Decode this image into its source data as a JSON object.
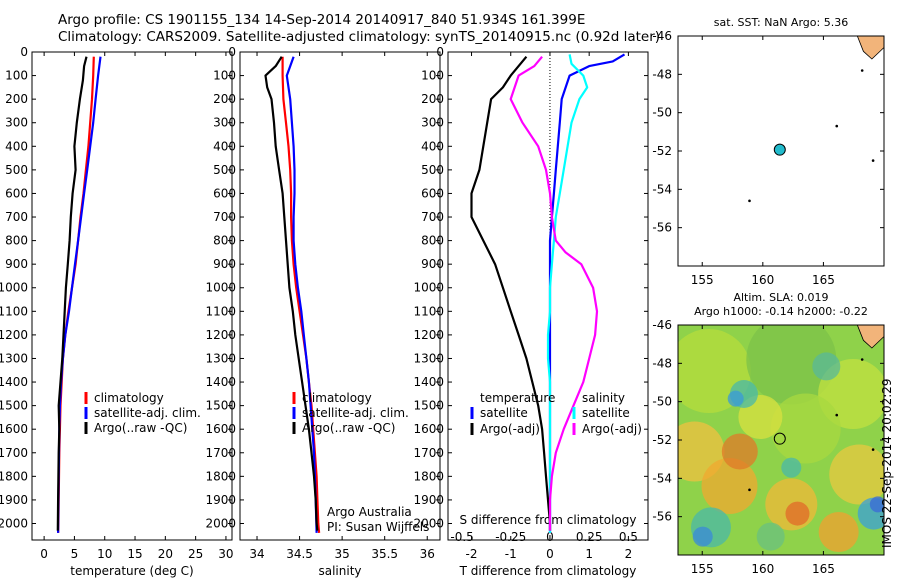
{
  "header": {
    "line1": "Argo profile: CS 1901155_134 14-Sep-2014 20140917_840 51.934S 161.399E",
    "line2": "Climatology: CARS2009. Satellite-adjusted climatology: synTS_20140915.nc (0.92d later)"
  },
  "footer_stamp": "IMOS 22-Sep-2014 20:02:29",
  "colors": {
    "climatology": "#ff0000",
    "satellite": "#0000ff",
    "argo": "#000000",
    "sat_diff_T": "#00ffff",
    "sat_diff_S": "#ff00ff",
    "sst_map_bg": "#ffffff",
    "land": "#f2b47a"
  },
  "chart_data": [
    {
      "type": "line",
      "id": "temperature",
      "xlabel": "temperature (deg C)",
      "ylabel": "",
      "xlim": [
        -2,
        31
      ],
      "ylim": [
        2070,
        0
      ],
      "xticks": [
        0,
        5,
        10,
        15,
        20,
        25,
        30
      ],
      "yticks": [
        0,
        100,
        200,
        300,
        400,
        500,
        600,
        700,
        800,
        900,
        1000,
        1100,
        1200,
        1300,
        1400,
        1500,
        1600,
        1700,
        1800,
        1900,
        2000
      ],
      "legend": [
        "climatology",
        "satellite-adj. clim.",
        "Argo(..raw -QC)"
      ],
      "series": [
        {
          "name": "climatology",
          "color": "#ff0000",
          "x": [
            8.2,
            8.1,
            7.9,
            7.6,
            7.3,
            6.9,
            6.5,
            6.0,
            5.6,
            5.2,
            4.6,
            4.0,
            3.5,
            3.1,
            2.9,
            2.7,
            2.6,
            2.5,
            2.45,
            2.4,
            2.35,
            2.3
          ],
          "y": [
            20,
            100,
            200,
            300,
            400,
            500,
            600,
            700,
            800,
            900,
            1000,
            1100,
            1200,
            1300,
            1400,
            1500,
            1600,
            1700,
            1800,
            1900,
            2000,
            2040
          ]
        },
        {
          "name": "satellite-adj. clim.",
          "color": "#0000ff",
          "x": [
            9.3,
            8.9,
            8.5,
            8.1,
            7.6,
            7.1,
            6.6,
            6.1,
            5.6,
            5.1,
            4.6,
            4.1,
            3.5,
            3.1,
            2.8,
            2.6,
            2.5,
            2.45,
            2.4,
            2.35,
            2.3
          ],
          "y": [
            20,
            100,
            200,
            300,
            400,
            500,
            600,
            700,
            800,
            900,
            1000,
            1100,
            1200,
            1300,
            1400,
            1500,
            1600,
            1700,
            1800,
            1900,
            2040
          ]
        },
        {
          "name": "Argo(..raw -QC)",
          "color": "#000000",
          "x": [
            7.0,
            6.6,
            6.4,
            5.9,
            5.4,
            5.0,
            5.2,
            4.7,
            4.4,
            4.2,
            3.9,
            3.6,
            3.4,
            3.2,
            3.0,
            2.7,
            2.4,
            2.5,
            2.4,
            2.35,
            2.3,
            2.25
          ],
          "y": [
            20,
            60,
            120,
            200,
            300,
            400,
            500,
            600,
            700,
            800,
            900,
            1000,
            1100,
            1200,
            1300,
            1400,
            1500,
            1600,
            1700,
            1800,
            1900,
            2030
          ]
        }
      ]
    },
    {
      "type": "line",
      "id": "salinity",
      "xlabel": "salinity",
      "xlim": [
        33.8,
        36.15
      ],
      "ylim": [
        2070,
        0
      ],
      "xticks": [
        34,
        34.5,
        35,
        35.5,
        36
      ],
      "yticks": [
        0,
        100,
        200,
        300,
        400,
        500,
        600,
        700,
        800,
        900,
        1000,
        1100,
        1200,
        1300,
        1400,
        1500,
        1600,
        1700,
        1800,
        1900,
        2000
      ],
      "legend": [
        "climatology",
        "satellite-adj. clim.",
        "Argo(..raw -QC)"
      ],
      "annotation": [
        "Argo Australia",
        "PI: Susan Wijffels"
      ],
      "series": [
        {
          "name": "climatology",
          "color": "#ff0000",
          "x": [
            34.3,
            34.3,
            34.31,
            34.34,
            34.37,
            34.39,
            34.4,
            34.4,
            34.41,
            34.43,
            34.46,
            34.5,
            34.54,
            34.58,
            34.61,
            34.64,
            34.66,
            34.68,
            34.7,
            34.71,
            34.72,
            34.73
          ],
          "y": [
            20,
            100,
            200,
            300,
            400,
            500,
            600,
            700,
            800,
            900,
            1000,
            1100,
            1200,
            1300,
            1400,
            1500,
            1600,
            1700,
            1800,
            1900,
            2000,
            2040
          ]
        },
        {
          "name": "satellite-adj. clim.",
          "color": "#0000ff",
          "x": [
            34.43,
            34.35,
            34.39,
            34.41,
            34.43,
            34.44,
            34.44,
            34.43,
            34.43,
            34.45,
            34.48,
            34.52,
            34.55,
            34.58,
            34.61,
            34.63,
            34.65,
            34.67,
            34.68,
            34.69,
            34.7
          ],
          "y": [
            20,
            100,
            200,
            300,
            400,
            500,
            600,
            700,
            800,
            900,
            1000,
            1100,
            1200,
            1300,
            1400,
            1500,
            1600,
            1700,
            1800,
            1900,
            2040
          ]
        },
        {
          "name": "Argo(..raw -QC)",
          "color": "#000000",
          "x": [
            34.29,
            34.22,
            34.1,
            34.12,
            34.17,
            34.2,
            34.22,
            34.26,
            34.3,
            34.32,
            34.34,
            34.36,
            34.38,
            34.42,
            34.45,
            34.49,
            34.53,
            34.57,
            34.61,
            34.64,
            34.67,
            34.69,
            34.7,
            34.71
          ],
          "y": [
            20,
            60,
            100,
            150,
            200,
            300,
            400,
            500,
            600,
            700,
            800,
            900,
            1000,
            1100,
            1200,
            1300,
            1400,
            1500,
            1600,
            1700,
            1800,
            1900,
            2000,
            2030
          ]
        }
      ]
    },
    {
      "type": "line",
      "id": "difference",
      "xlabel_T": "T difference from climatology",
      "xlabel_S": "S difference from climatology",
      "xlim_T": [
        -2.6,
        2.5
      ],
      "xticks_T": [
        -2,
        -1,
        0,
        1,
        2
      ],
      "xticks_S": [
        "-0.5",
        "-0.25",
        "0",
        "0.25",
        "0.5"
      ],
      "ylim": [
        2070,
        0
      ],
      "yticks": [
        0,
        100,
        200,
        300,
        400,
        500,
        600,
        700,
        800,
        900,
        1000,
        1100,
        1200,
        1300,
        1400,
        1500,
        1600,
        1700,
        1800,
        1900,
        2000
      ],
      "legend_groups": [
        {
          "title": "temperature",
          "items": [
            "satellite",
            "Argo(-adj)"
          ]
        },
        {
          "title": "salinity",
          "items": [
            "satellite",
            "Argo(-adj)"
          ]
        }
      ],
      "series": [
        {
          "name": "temperature satellite",
          "color": "#0000ff",
          "x": [
            1.9,
            1.6,
            1.0,
            0.5,
            0.3,
            0.25,
            0.2,
            0.15,
            0.1,
            0.05,
            0.0,
            0.0,
            0.0,
            0.0,
            0.0,
            0.0,
            0.0,
            0.0,
            0.0
          ],
          "y": [
            10,
            40,
            60,
            100,
            200,
            300,
            400,
            500,
            600,
            700,
            800,
            900,
            1000,
            1200,
            1400,
            1600,
            1800,
            1900,
            2040
          ]
        },
        {
          "name": "salinity satellite",
          "color": "#00ffff",
          "x": [
            0.5,
            0.55,
            0.85,
            0.95,
            0.75,
            0.55,
            0.45,
            0.35,
            0.25,
            0.15,
            0.1,
            0.05,
            0.0,
            0.0,
            -0.05,
            -0.05,
            0.0,
            0.0,
            0.0,
            0.0,
            0.0,
            0.0
          ],
          "y": [
            10,
            50,
            100,
            150,
            200,
            300,
            400,
            500,
            600,
            700,
            800,
            900,
            1000,
            1100,
            1200,
            1300,
            1400,
            1500,
            1600,
            1800,
            1900,
            2040
          ]
        },
        {
          "name": "temperature Argo(-adj)",
          "color": "#000000",
          "x": [
            -0.6,
            -0.8,
            -1.0,
            -1.2,
            -1.5,
            -1.6,
            -1.7,
            -1.8,
            -2.0,
            -2.0,
            -1.7,
            -1.4,
            -1.2,
            -1.0,
            -0.8,
            -0.6,
            -0.45,
            -0.3,
            -0.2,
            -0.15,
            -0.1,
            -0.05,
            0.0,
            0.0
          ],
          "y": [
            20,
            60,
            100,
            150,
            200,
            300,
            400,
            500,
            600,
            700,
            800,
            900,
            1000,
            1100,
            1200,
            1300,
            1400,
            1500,
            1600,
            1700,
            1800,
            1900,
            2000,
            2030
          ]
        },
        {
          "name": "salinity Argo(-adj)",
          "color": "#ff00ff",
          "x": [
            -0.2,
            -0.4,
            -0.8,
            -1.0,
            -0.7,
            -0.3,
            -0.1,
            0.0,
            0.05,
            0.15,
            0.4,
            0.8,
            1.1,
            1.2,
            1.15,
            1.0,
            0.85,
            0.6,
            0.35,
            0.15,
            0.05,
            0.0,
            0.0
          ],
          "y": [
            20,
            60,
            100,
            200,
            300,
            400,
            500,
            600,
            700,
            800,
            850,
            900,
            1000,
            1100,
            1200,
            1300,
            1400,
            1500,
            1600,
            1700,
            1800,
            1900,
            2030
          ]
        }
      ]
    },
    {
      "type": "scatter",
      "id": "sst_map",
      "title": "sat. SST: NaN Argo: 5.36",
      "xlim": [
        153,
        170
      ],
      "ylim": [
        -58,
        -46
      ],
      "xticks": [
        155,
        160,
        165
      ],
      "yticks": [
        -46,
        -48,
        -50,
        -52,
        -54,
        -56
      ],
      "marker": {
        "lon": 161.4,
        "lat": -51.93,
        "color": "#22bbcc"
      }
    },
    {
      "type": "heatmap",
      "id": "sla_map",
      "title_line1": "Altim. SLA: 0.019",
      "title_line2": "Argo h1000: -0.14 h2000: -0.22",
      "xlim": [
        153,
        170
      ],
      "ylim": [
        -58,
        -46
      ],
      "xticks": [
        155,
        160,
        165
      ],
      "yticks": [
        -46,
        -48,
        -50,
        -52,
        -54,
        -56
      ],
      "marker": {
        "lon": 161.4,
        "lat": -51.93
      }
    }
  ]
}
